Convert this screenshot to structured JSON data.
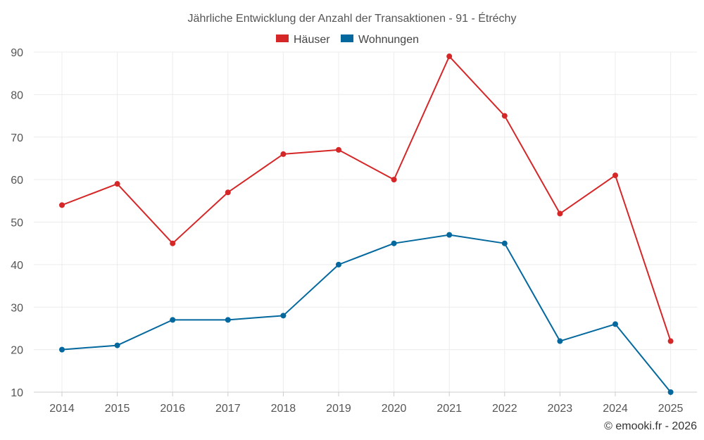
{
  "chart_data": {
    "type": "line",
    "title": "Jährliche Entwicklung der Anzahl der Transaktionen - 91 - Étréchy",
    "categories": [
      "2014",
      "2015",
      "2016",
      "2017",
      "2018",
      "2019",
      "2020",
      "2021",
      "2022",
      "2023",
      "2024",
      "2025"
    ],
    "series": [
      {
        "name": "Häuser",
        "color": "#d62728",
        "values": [
          54,
          59,
          45,
          57,
          66,
          67,
          60,
          89,
          75,
          52,
          61,
          22
        ]
      },
      {
        "name": "Wohnungen",
        "color": "#03689e",
        "values": [
          20,
          21,
          27,
          27,
          28,
          40,
          45,
          47,
          45,
          22,
          26,
          10
        ]
      }
    ],
    "yticks": [
      10,
      20,
      30,
      40,
      50,
      60,
      70,
      80,
      90
    ],
    "ylim": [
      10,
      90
    ],
    "grid": true,
    "legend": "top-center",
    "xlabel": "",
    "ylabel": ""
  },
  "credit": "© emooki.fr - 2026"
}
